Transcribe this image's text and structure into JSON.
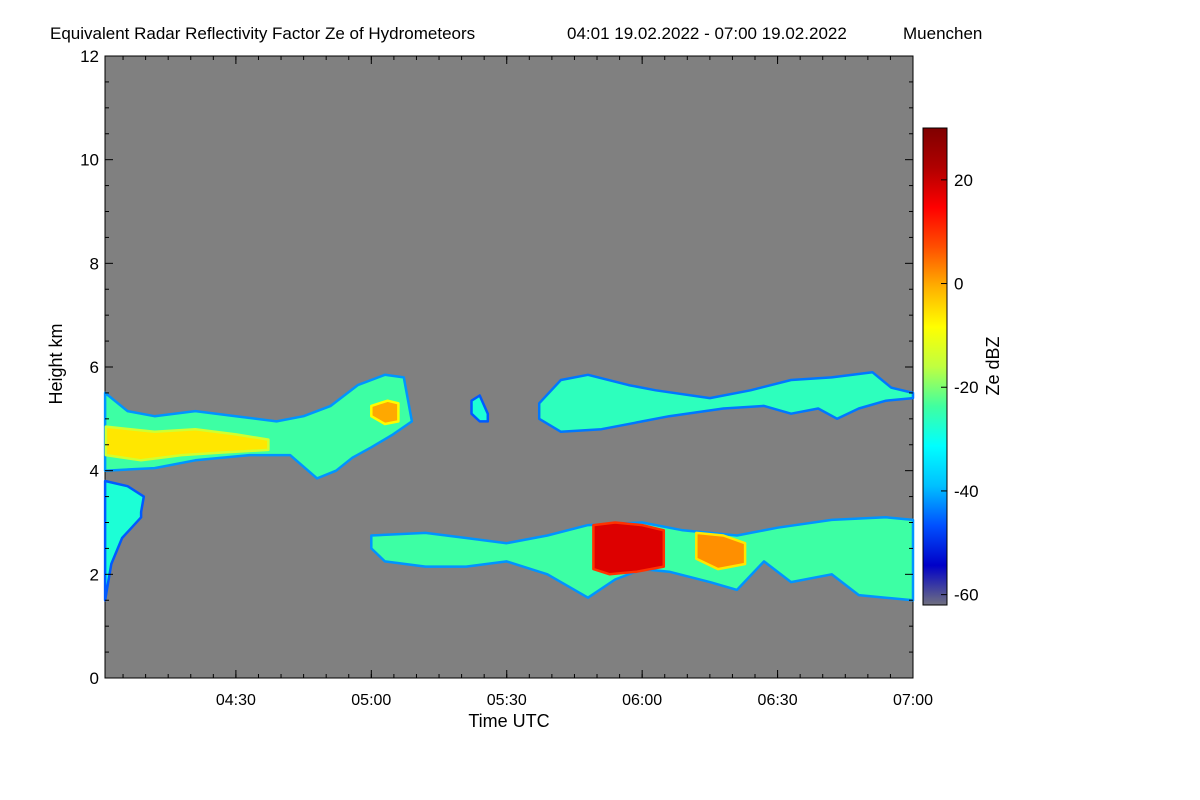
{
  "chart_data": {
    "type": "heatmap",
    "title": "Equivalent Radar Reflectivity Factor Ze of Hydrometeors",
    "period": "04:01 19.02.2022 - 07:00 19.02.2022",
    "location": "Muenchen",
    "xlabel": "Time UTC",
    "ylabel": "Height km",
    "xlim": [
      4.0167,
      7.0
    ],
    "ylim": [
      0,
      12
    ],
    "x_ticks": [
      {
        "value": 4.5,
        "label": "04:30"
      },
      {
        "value": 5.0,
        "label": "05:00"
      },
      {
        "value": 5.5,
        "label": "05:30"
      },
      {
        "value": 6.0,
        "label": "06:00"
      },
      {
        "value": 6.5,
        "label": "06:30"
      },
      {
        "value": 7.0,
        "label": "07:00"
      }
    ],
    "y_ticks": [
      {
        "value": 0,
        "label": "0"
      },
      {
        "value": 2,
        "label": "2"
      },
      {
        "value": 4,
        "label": "4"
      },
      {
        "value": 6,
        "label": "6"
      },
      {
        "value": 8,
        "label": "8"
      },
      {
        "value": 10,
        "label": "10"
      },
      {
        "value": 12,
        "label": "12"
      }
    ],
    "background_color": "#808080",
    "colorbar": {
      "label": "Ze dBZ",
      "range": [
        -62,
        30
      ],
      "ticks": [
        {
          "value": -60,
          "label": "-60"
        },
        {
          "value": -40,
          "label": "-40"
        },
        {
          "value": -20,
          "label": "-20"
        },
        {
          "value": 0,
          "label": "0"
        },
        {
          "value": 20,
          "label": "20"
        }
      ],
      "colors": [
        "#707080",
        "#0000c8",
        "#0050ff",
        "#00c0ff",
        "#00ffff",
        "#40ffa0",
        "#c0ff40",
        "#ffff00",
        "#ffb000",
        "#ff5000",
        "#ff0000",
        "#b00000",
        "#800000"
      ]
    },
    "echo_layers": [
      {
        "name": "upper-layer-early",
        "dbz": -24,
        "top": [
          [
            4.017,
            5.5
          ],
          [
            4.1,
            5.15
          ],
          [
            4.2,
            5.05
          ],
          [
            4.35,
            5.15
          ],
          [
            4.5,
            5.05
          ],
          [
            4.65,
            4.95
          ],
          [
            4.75,
            5.05
          ],
          [
            4.85,
            5.25
          ],
          [
            4.95,
            5.65
          ],
          [
            5.05,
            5.85
          ],
          [
            5.12,
            5.8
          ],
          [
            5.15,
            4.95
          ]
        ],
        "bottom": [
          [
            5.15,
            4.95
          ],
          [
            5.08,
            4.7
          ],
          [
            5.0,
            4.45
          ],
          [
            4.93,
            4.25
          ],
          [
            4.87,
            4.0
          ],
          [
            4.8,
            3.85
          ],
          [
            4.7,
            4.3
          ],
          [
            4.55,
            4.3
          ],
          [
            4.35,
            4.2
          ],
          [
            4.2,
            4.05
          ],
          [
            4.017,
            4.0
          ]
        ]
      },
      {
        "name": "upper-layer-core",
        "dbz": -6,
        "top": [
          [
            4.02,
            4.85
          ],
          [
            4.2,
            4.75
          ],
          [
            4.35,
            4.8
          ],
          [
            4.5,
            4.7
          ],
          [
            4.62,
            4.6
          ]
        ],
        "bottom": [
          [
            4.62,
            4.4
          ],
          [
            4.45,
            4.35
          ],
          [
            4.3,
            4.3
          ],
          [
            4.15,
            4.2
          ],
          [
            4.02,
            4.3
          ]
        ]
      },
      {
        "name": "upper-layer-bright-spot",
        "dbz": 0,
        "top": [
          [
            5.0,
            5.25
          ],
          [
            5.06,
            5.35
          ],
          [
            5.1,
            5.3
          ]
        ],
        "bottom": [
          [
            5.1,
            4.95
          ],
          [
            5.05,
            4.9
          ],
          [
            5.0,
            5.05
          ]
        ]
      },
      {
        "name": "upper-fragment",
        "dbz": -28,
        "top": [
          [
            5.37,
            5.35
          ],
          [
            5.4,
            5.45
          ],
          [
            5.43,
            5.1
          ]
        ],
        "bottom": [
          [
            5.43,
            4.95
          ],
          [
            5.4,
            4.95
          ],
          [
            5.37,
            5.1
          ]
        ]
      },
      {
        "name": "upper-layer-late",
        "dbz": -26,
        "top": [
          [
            5.62,
            5.3
          ],
          [
            5.7,
            5.75
          ],
          [
            5.8,
            5.85
          ],
          [
            5.95,
            5.65
          ],
          [
            6.05,
            5.55
          ],
          [
            6.25,
            5.4
          ],
          [
            6.4,
            5.55
          ],
          [
            6.55,
            5.75
          ],
          [
            6.7,
            5.8
          ],
          [
            6.85,
            5.9
          ],
          [
            6.92,
            5.6
          ],
          [
            7.0,
            5.5
          ]
        ],
        "bottom": [
          [
            7.0,
            5.4
          ],
          [
            6.9,
            5.35
          ],
          [
            6.8,
            5.2
          ],
          [
            6.72,
            5.0
          ],
          [
            6.65,
            5.2
          ],
          [
            6.55,
            5.1
          ],
          [
            6.45,
            5.25
          ],
          [
            6.3,
            5.2
          ],
          [
            6.1,
            5.05
          ],
          [
            6.0,
            4.95
          ],
          [
            5.85,
            4.8
          ],
          [
            5.7,
            4.75
          ],
          [
            5.62,
            5.0
          ]
        ]
      },
      {
        "name": "lower-left-patch",
        "dbz": -28,
        "top": [
          [
            4.017,
            3.8
          ],
          [
            4.1,
            3.7
          ],
          [
            4.16,
            3.5
          ],
          [
            4.15,
            3.2
          ]
        ],
        "bottom": [
          [
            4.15,
            3.1
          ],
          [
            4.08,
            2.7
          ],
          [
            4.04,
            2.2
          ],
          [
            4.017,
            1.5
          ]
        ]
      },
      {
        "name": "lower-layer",
        "dbz": -24,
        "top": [
          [
            5.0,
            2.75
          ],
          [
            5.2,
            2.8
          ],
          [
            5.35,
            2.7
          ],
          [
            5.5,
            2.6
          ],
          [
            5.65,
            2.75
          ],
          [
            5.8,
            2.95
          ],
          [
            6.0,
            3.0
          ],
          [
            6.15,
            2.85
          ],
          [
            6.35,
            2.75
          ],
          [
            6.5,
            2.9
          ],
          [
            6.7,
            3.05
          ],
          [
            6.9,
            3.1
          ],
          [
            7.0,
            3.05
          ]
        ],
        "bottom": [
          [
            7.0,
            1.5
          ],
          [
            6.9,
            1.55
          ],
          [
            6.8,
            1.6
          ],
          [
            6.7,
            2.0
          ],
          [
            6.55,
            1.85
          ],
          [
            6.45,
            2.25
          ],
          [
            6.35,
            1.7
          ],
          [
            6.25,
            1.85
          ],
          [
            6.1,
            2.05
          ],
          [
            6.0,
            2.1
          ],
          [
            5.9,
            1.9
          ],
          [
            5.8,
            1.55
          ],
          [
            5.65,
            2.0
          ],
          [
            5.5,
            2.25
          ],
          [
            5.35,
            2.15
          ],
          [
            5.2,
            2.15
          ],
          [
            5.05,
            2.25
          ],
          [
            5.0,
            2.5
          ]
        ]
      },
      {
        "name": "lower-layer-intense-core",
        "dbz": 18,
        "top": [
          [
            5.82,
            2.95
          ],
          [
            5.9,
            3.0
          ],
          [
            6.0,
            2.95
          ],
          [
            6.08,
            2.85
          ]
        ],
        "bottom": [
          [
            6.08,
            2.15
          ],
          [
            5.98,
            2.05
          ],
          [
            5.88,
            2.0
          ],
          [
            5.82,
            2.1
          ]
        ]
      },
      {
        "name": "lower-layer-secondary-core",
        "dbz": 2,
        "top": [
          [
            6.2,
            2.8
          ],
          [
            6.3,
            2.75
          ],
          [
            6.38,
            2.6
          ]
        ],
        "bottom": [
          [
            6.38,
            2.2
          ],
          [
            6.28,
            2.1
          ],
          [
            6.2,
            2.3
          ]
        ]
      }
    ]
  }
}
